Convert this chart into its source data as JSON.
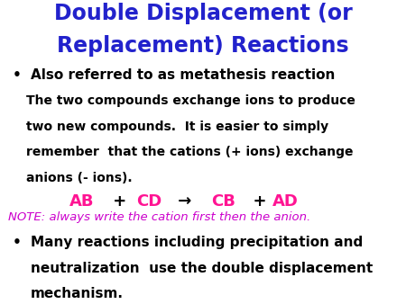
{
  "title_line1": "Double Displacement (or",
  "title_line2": "Replacement) Reactions",
  "title_color": "#2222CC",
  "bullet1": "Also referred to as metathesis reaction",
  "bullet1_color": "#000000",
  "para_line1": "The two compounds exchange ions to produce",
  "para_line2": "two new compounds.  It is easier to simply",
  "para_line3": "remember  that the cations (+ ions) exchange",
  "para_line4": "anions (- ions).",
  "paragraph_color": "#000000",
  "equation_parts": [
    "AB",
    " +  ",
    "CD",
    " → ",
    "CB",
    "  +  ",
    "AD"
  ],
  "equation_colors": [
    "#FF1493",
    "#000000",
    "#FF1493",
    "#000000",
    "#FF1493",
    "#000000",
    "#FF1493"
  ],
  "note": "NOTE: always write the cation first then the anion.",
  "note_color": "#CC00CC",
  "bullet2_line1": "Many reactions including precipitation and",
  "bullet2_line2": "neutralization  use the double displacement",
  "bullet2_line3": "mechanism.",
  "bullet2_color": "#000000",
  "bg_color": "#FFFFFF"
}
